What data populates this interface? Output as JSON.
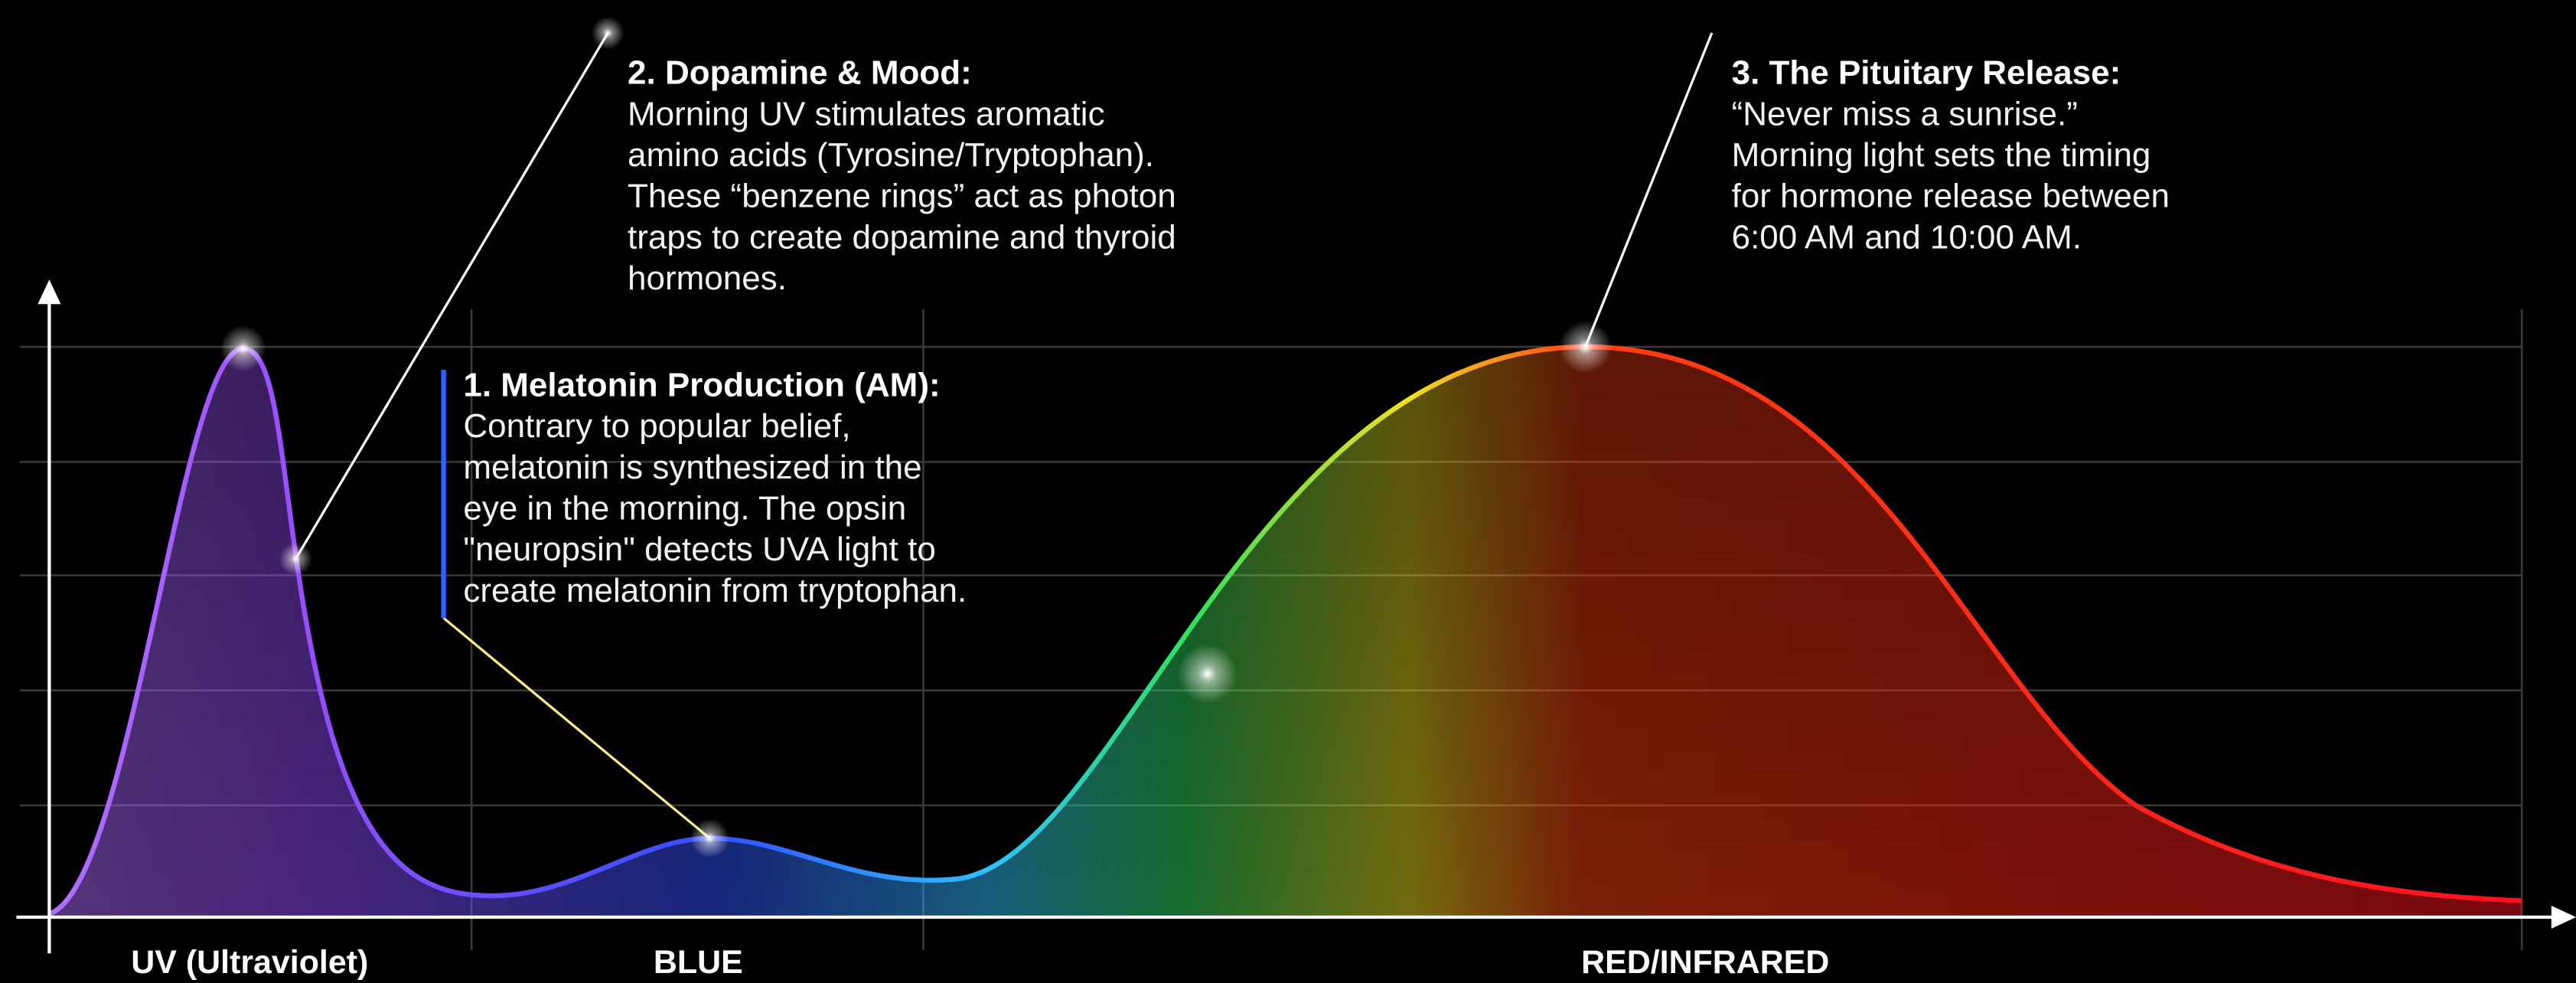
{
  "annotations": [
    {
      "title": "1. Melatonin Production (AM):",
      "lines": [
        "Contrary to popular belief,",
        "melatonin is synthesized in the",
        "eye in the morning. The opsin",
        "\"neuropsin\" detects UVA light to",
        "create melatonin from tryptophan."
      ]
    },
    {
      "title": "2. Dopamine & Mood:",
      "lines": [
        "Morning UV stimulates aromatic",
        "amino acids (Tyrosine/Tryptophan).",
        "These “benzene rings” act as photon",
        "traps to create dopamine and thyroid",
        "hormones."
      ]
    },
    {
      "title": "3. The Pituitary Release:",
      "lines": [
        "“Never miss a sunrise.”",
        "Morning light sets the timing",
        "for hormone release between",
        "6:00 AM and 10:00 AM."
      ]
    }
  ],
  "x_labels": [
    "UV (Ultraviolet)",
    "BLUE",
    "RED/INFRARED"
  ]
}
